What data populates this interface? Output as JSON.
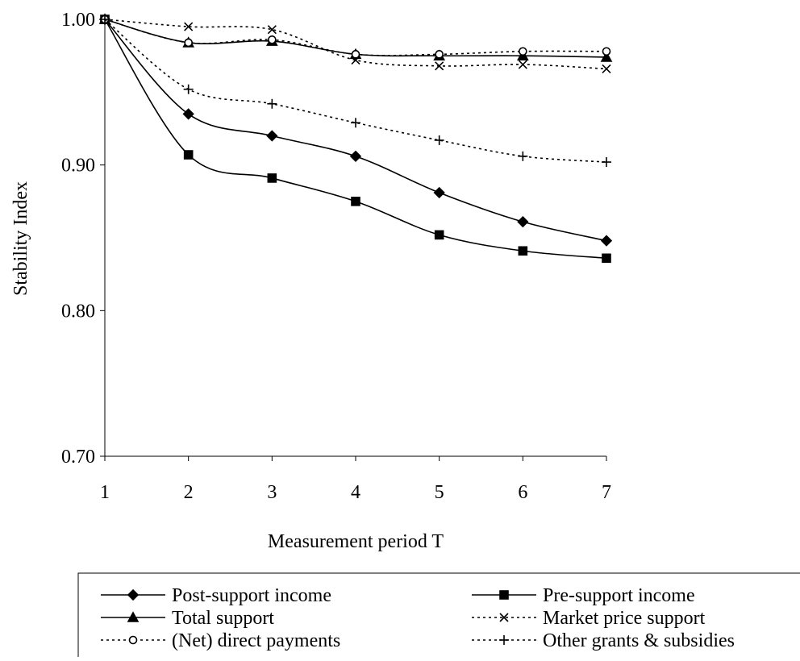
{
  "chart_data": {
    "type": "line",
    "title": "",
    "xlabel": "Measurement period T",
    "ylabel": "Stability Index",
    "x": [
      1,
      2,
      3,
      4,
      5,
      6,
      7
    ],
    "x_tick_labels": [
      "1",
      "2",
      "3",
      "4",
      "5",
      "6",
      "7"
    ],
    "ylim": [
      0.7,
      1.0
    ],
    "y_ticks": [
      0.7,
      0.8,
      0.9,
      1.0
    ],
    "y_tick_labels": [
      "0.70",
      "0.80",
      "0.90",
      "1.00"
    ],
    "grid": false,
    "legend_position": "bottom",
    "series": [
      {
        "name": "Post-support income",
        "marker": "diamond",
        "line": "solid",
        "values": [
          1.0,
          0.935,
          0.92,
          0.906,
          0.881,
          0.861,
          0.848
        ]
      },
      {
        "name": "Pre-support income",
        "marker": "square",
        "line": "solid",
        "values": [
          1.0,
          0.907,
          0.891,
          0.875,
          0.852,
          0.841,
          0.836
        ]
      },
      {
        "name": "Total support",
        "marker": "triangle",
        "line": "solid",
        "values": [
          1.0,
          0.984,
          0.985,
          0.976,
          0.975,
          0.975,
          0.974
        ]
      },
      {
        "name": "Market price support",
        "marker": "x",
        "line": "dotted",
        "values": [
          1.0,
          0.995,
          0.993,
          0.972,
          0.968,
          0.969,
          0.966
        ]
      },
      {
        "name": "(Net) direct payments",
        "marker": "circle",
        "line": "dotted",
        "values": [
          1.0,
          0.984,
          0.986,
          0.976,
          0.976,
          0.978,
          0.978
        ]
      },
      {
        "name": "Other grants & subsidies",
        "marker": "plus",
        "line": "dotted",
        "values": [
          1.0,
          0.952,
          0.942,
          0.929,
          0.917,
          0.906,
          0.902
        ]
      }
    ],
    "colors": {
      "line": "#000000",
      "background": "#ffffff"
    }
  }
}
